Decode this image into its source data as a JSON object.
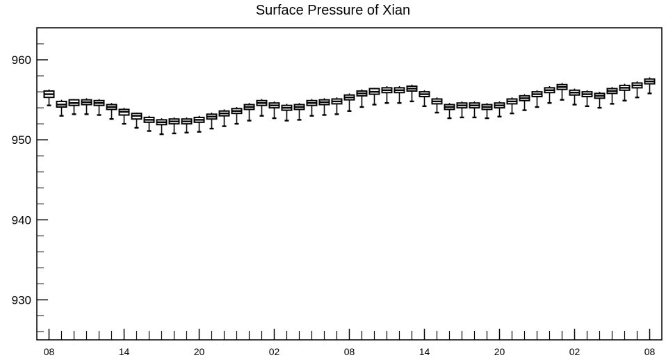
{
  "chart_data": {
    "type": "box",
    "title": "Surface Pressure of Xian",
    "xlabel": "",
    "ylabel": "",
    "ylim": [
      925,
      964
    ],
    "y_ticks": [
      930,
      940,
      950,
      960
    ],
    "x_tick_labels": [
      "08",
      "14",
      "20",
      "02",
      "08",
      "14",
      "20",
      "02",
      "08"
    ],
    "x_tick_interval_steps": 6,
    "grid": false,
    "legend": "none",
    "series": [
      {
        "median": [
          955.7,
          954.4,
          954.6,
          954.7,
          954.6,
          954.1,
          953.5,
          953.0,
          952.5,
          952.2,
          952.3,
          952.3,
          952.5,
          952.9,
          953.3,
          953.6,
          954.1,
          954.6,
          954.3,
          954.0,
          954.1,
          954.6,
          954.7,
          954.8,
          955.3,
          955.8,
          956.0,
          956.2,
          956.2,
          956.4,
          955.7,
          954.8,
          954.1,
          954.3,
          954.3,
          954.1,
          954.3,
          954.8,
          955.2,
          955.7,
          956.2,
          956.6,
          955.9,
          955.7,
          955.5,
          956.1,
          956.5,
          956.8,
          957.3
        ],
        "q1": [
          955.3,
          954.1,
          954.3,
          954.4,
          954.3,
          953.8,
          953.1,
          952.6,
          952.2,
          951.9,
          952.0,
          952.0,
          952.2,
          952.6,
          953.0,
          953.3,
          953.8,
          954.3,
          954.0,
          953.7,
          953.8,
          954.3,
          954.4,
          954.5,
          955.0,
          955.5,
          955.7,
          955.9,
          955.9,
          956.1,
          955.4,
          954.5,
          953.8,
          954.0,
          954.0,
          953.8,
          954.0,
          954.5,
          954.9,
          955.4,
          955.9,
          956.3,
          955.6,
          955.4,
          955.2,
          955.8,
          956.2,
          956.5,
          957.0
        ],
        "q3": [
          956.1,
          954.8,
          955.0,
          955.0,
          954.9,
          954.4,
          953.8,
          953.3,
          952.8,
          952.5,
          952.6,
          952.6,
          952.8,
          953.2,
          953.6,
          953.9,
          954.4,
          954.9,
          954.6,
          954.3,
          954.4,
          954.9,
          955.0,
          955.1,
          955.6,
          956.1,
          956.4,
          956.5,
          956.5,
          956.7,
          956.0,
          955.1,
          954.4,
          954.6,
          954.6,
          954.4,
          954.6,
          955.1,
          955.5,
          956.0,
          956.5,
          956.9,
          956.2,
          956.0,
          955.8,
          956.4,
          956.8,
          957.1,
          957.6
        ],
        "min": [
          954.3,
          953.0,
          953.2,
          953.2,
          953.1,
          952.6,
          952.0,
          951.5,
          951.1,
          950.7,
          950.8,
          950.9,
          951.0,
          951.4,
          951.7,
          952.0,
          952.4,
          953.0,
          952.7,
          952.4,
          952.5,
          953.0,
          953.1,
          953.2,
          953.6,
          954.1,
          954.4,
          954.6,
          954.6,
          954.8,
          954.2,
          953.4,
          952.7,
          952.8,
          952.8,
          952.7,
          952.9,
          953.3,
          953.7,
          954.1,
          954.6,
          955.0,
          954.4,
          954.2,
          954.0,
          954.5,
          954.9,
          955.3,
          955.8
        ],
        "max": [
          956.3,
          955.0,
          955.1,
          955.2,
          955.1,
          954.6,
          954.0,
          953.4,
          953.0,
          952.7,
          952.8,
          952.8,
          953.0,
          953.4,
          953.8,
          954.1,
          954.6,
          955.1,
          954.8,
          954.5,
          954.6,
          955.1,
          955.2,
          955.3,
          955.8,
          956.3,
          956.5,
          956.7,
          956.7,
          956.9,
          956.2,
          955.3,
          954.6,
          954.8,
          954.8,
          954.6,
          954.8,
          955.3,
          955.7,
          956.2,
          956.7,
          957.1,
          956.4,
          956.2,
          956.0,
          956.6,
          957.0,
          957.3,
          957.8
        ]
      }
    ]
  }
}
